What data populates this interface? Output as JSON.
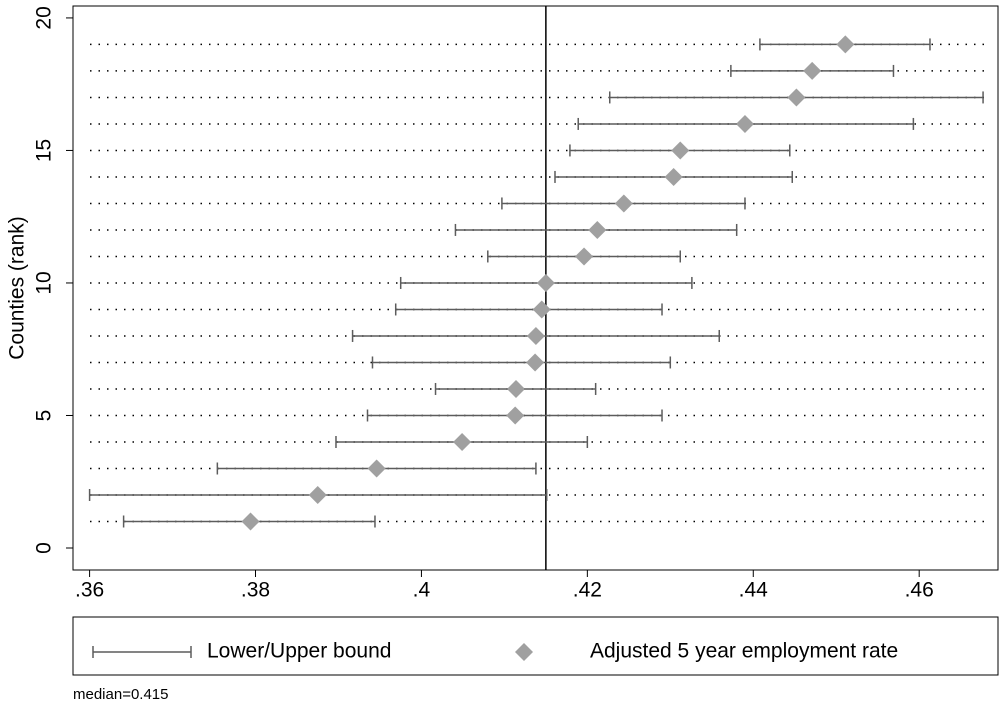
{
  "chart_data": {
    "type": "errorbar",
    "y_label": "Counties (rank)",
    "note": "median=0.415",
    "reference_line": 0.415,
    "y": [
      1,
      2,
      3,
      4,
      5,
      6,
      7,
      8,
      9,
      10,
      11,
      12,
      13,
      14,
      15,
      16,
      17,
      18,
      19
    ],
    "series": [
      {
        "name": "Lower/Upper bound",
        "color": "#5c5c5c",
        "lower": [
          0.3641,
          0.36,
          0.3754,
          0.3897,
          0.3935,
          0.4017,
          0.3941,
          0.3917,
          0.3969,
          0.3975,
          0.408,
          0.4041,
          0.4097,
          0.4161,
          0.4179,
          0.4189,
          0.4227,
          0.4373,
          0.4408
        ],
        "upper": [
          0.3944,
          0.4151,
          0.4138,
          0.42,
          0.429,
          0.421,
          0.43,
          0.4359,
          0.429,
          0.4326,
          0.4312,
          0.438,
          0.439,
          0.4447,
          0.4444,
          0.4593,
          0.4677,
          0.4569,
          0.4613
        ]
      },
      {
        "name": "Adjusted 5 year employment rate",
        "color": "#a0a0a0",
        "values": [
          0.3794,
          0.3875,
          0.3946,
          0.4049,
          0.4113,
          0.4114,
          0.4137,
          0.4138,
          0.4145,
          0.415,
          0.4196,
          0.4212,
          0.4244,
          0.4304,
          0.4312,
          0.439,
          0.4452,
          0.4471,
          0.4511
        ]
      }
    ],
    "xlim": [
      0.358,
      0.4695
    ],
    "xticks": [
      {
        "value": 0.36,
        "label": ".36"
      },
      {
        "value": 0.38,
        "label": ".38"
      },
      {
        "value": 0.4,
        "label": ".4"
      },
      {
        "value": 0.42,
        "label": ".42"
      },
      {
        "value": 0.44,
        "label": ".44"
      },
      {
        "value": 0.46,
        "label": ".46"
      }
    ],
    "ylim": [
      -0.83,
      20.45
    ],
    "yticks": [
      0,
      5,
      10,
      15,
      20
    ]
  }
}
